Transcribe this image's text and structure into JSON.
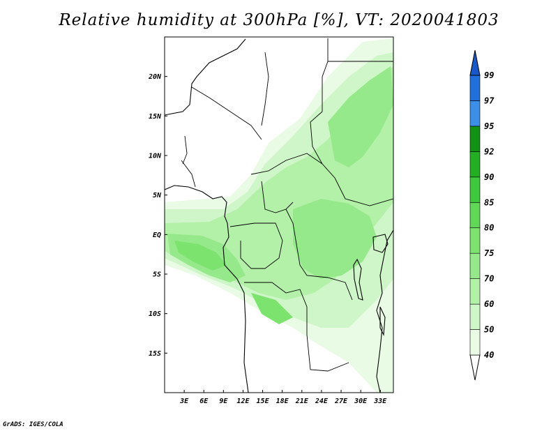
{
  "title": "Relative humidity at 300hPa [%], VT: 2020041803",
  "credit": "GrADS: IGES/COLA",
  "map": {
    "projection": "latlon",
    "lon_range": [
      0,
      35
    ],
    "lat_range": [
      -20,
      25
    ],
    "lon_ticks": [
      "3E",
      "6E",
      "9E",
      "12E",
      "15E",
      "18E",
      "21E",
      "24E",
      "27E",
      "30E",
      "33E"
    ],
    "lat_ticks": [
      "20N",
      "15N",
      "10N",
      "5N",
      "EQ",
      "5S",
      "10S",
      "15S"
    ],
    "field": "relative humidity",
    "level": "300hPa",
    "units": "%",
    "valid_time": "2020041803"
  },
  "colorbar": {
    "levels": [
      "40",
      "50",
      "60",
      "70",
      "75",
      "80",
      "85",
      "90",
      "92",
      "95",
      "97",
      "99"
    ],
    "colors": [
      "#ffffff",
      "#e9fbe4",
      "#cff6c8",
      "#b3f0a8",
      "#96e98a",
      "#7de36f",
      "#5fd955",
      "#3dc93a",
      "#22b021",
      "#129212",
      "#3a8fe8",
      "#1f6fdc",
      "#1a57c8"
    ]
  }
}
